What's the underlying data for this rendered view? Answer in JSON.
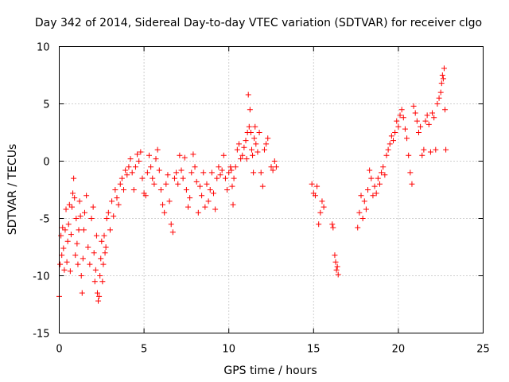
{
  "chart_data": {
    "type": "scatter",
    "title": "Day 342 of 2014, Sidereal Day-to-day VTEC variation (SDTVAR) for receiver clgo",
    "xlabel": "GPS time / hours",
    "ylabel": "SDTVAR / TECUs",
    "xlim": [
      0,
      25
    ],
    "ylim": [
      -15,
      10
    ],
    "xticks": [
      0,
      5,
      10,
      15,
      20,
      25
    ],
    "yticks": [
      -15,
      -10,
      -5,
      0,
      5,
      10
    ],
    "xtick_labels": [
      "0",
      "5",
      "10",
      "15",
      "20",
      "25"
    ],
    "ytick_labels": [
      "-15",
      "-10",
      "-5",
      "0",
      "5",
      "10"
    ],
    "grid": true,
    "marker": "+",
    "color": "#ff0000",
    "series": [
      {
        "name": "SDTVAR",
        "points": [
          [
            0.0,
            -11.8
          ],
          [
            0.05,
            -9.0
          ],
          [
            0.1,
            -6.5
          ],
          [
            0.15,
            -8.2
          ],
          [
            0.2,
            -5.8
          ],
          [
            0.25,
            -7.6
          ],
          [
            0.3,
            -9.5
          ],
          [
            0.35,
            -6.0
          ],
          [
            0.4,
            -4.2
          ],
          [
            0.45,
            -8.8
          ],
          [
            0.5,
            -7.0
          ],
          [
            0.55,
            -5.5
          ],
          [
            0.6,
            -3.8
          ],
          [
            0.65,
            -9.6
          ],
          [
            0.7,
            -6.4
          ],
          [
            0.75,
            -4.0
          ],
          [
            0.8,
            -2.8
          ],
          [
            0.85,
            -1.5
          ],
          [
            0.9,
            -3.2
          ],
          [
            0.95,
            -8.2
          ],
          [
            1.0,
            -5.0
          ],
          [
            1.05,
            -7.2
          ],
          [
            1.1,
            -9.0
          ],
          [
            1.15,
            -6.0
          ],
          [
            1.2,
            -3.5
          ],
          [
            1.25,
            -4.8
          ],
          [
            1.3,
            -10.0
          ],
          [
            1.35,
            -11.5
          ],
          [
            1.4,
            -8.5
          ],
          [
            1.45,
            -6.0
          ],
          [
            1.5,
            -4.5
          ],
          [
            1.6,
            -3.0
          ],
          [
            1.7,
            -7.5
          ],
          [
            1.8,
            -9.0
          ],
          [
            1.9,
            -5.0
          ],
          [
            2.0,
            -4.0
          ],
          [
            2.05,
            -8.0
          ],
          [
            2.1,
            -10.5
          ],
          [
            2.15,
            -9.5
          ],
          [
            2.2,
            -6.5
          ],
          [
            2.25,
            -11.5
          ],
          [
            2.3,
            -12.2
          ],
          [
            2.35,
            -11.8
          ],
          [
            2.4,
            -10.0
          ],
          [
            2.45,
            -8.5
          ],
          [
            2.5,
            -7.0
          ],
          [
            2.55,
            -10.5
          ],
          [
            2.6,
            -9.0
          ],
          [
            2.65,
            -6.5
          ],
          [
            2.7,
            -8.0
          ],
          [
            2.75,
            -7.5
          ],
          [
            2.8,
            -5.0
          ],
          [
            2.9,
            -4.5
          ],
          [
            3.0,
            -6.0
          ],
          [
            3.1,
            -3.5
          ],
          [
            3.2,
            -4.8
          ],
          [
            3.3,
            -2.5
          ],
          [
            3.4,
            -3.2
          ],
          [
            3.5,
            -3.8
          ],
          [
            3.6,
            -2.0
          ],
          [
            3.7,
            -1.5
          ],
          [
            3.8,
            -2.5
          ],
          [
            3.9,
            -0.8
          ],
          [
            4.0,
            -1.2
          ],
          [
            4.1,
            -0.5
          ],
          [
            4.2,
            0.2
          ],
          [
            4.3,
            -1.0
          ],
          [
            4.4,
            -2.5
          ],
          [
            4.5,
            -0.5
          ],
          [
            4.6,
            0.6
          ],
          [
            4.7,
            0.0
          ],
          [
            4.8,
            0.8
          ],
          [
            4.9,
            -1.5
          ],
          [
            5.0,
            -2.8
          ],
          [
            5.1,
            -3.0
          ],
          [
            5.2,
            -1.0
          ],
          [
            5.3,
            0.5
          ],
          [
            5.4,
            -0.5
          ],
          [
            5.5,
            -1.5
          ],
          [
            5.6,
            -2.0
          ],
          [
            5.7,
            0.2
          ],
          [
            5.8,
            1.0
          ],
          [
            5.9,
            -0.8
          ],
          [
            6.0,
            -2.5
          ],
          [
            6.1,
            -3.8
          ],
          [
            6.2,
            -4.5
          ],
          [
            6.3,
            -2.0
          ],
          [
            6.4,
            -1.2
          ],
          [
            6.5,
            -3.5
          ],
          [
            6.6,
            -5.5
          ],
          [
            6.7,
            -6.2
          ],
          [
            6.8,
            -1.5
          ],
          [
            6.9,
            -1.0
          ],
          [
            7.0,
            -2.0
          ],
          [
            7.1,
            0.5
          ],
          [
            7.2,
            -0.8
          ],
          [
            7.3,
            -1.5
          ],
          [
            7.4,
            0.3
          ],
          [
            7.5,
            -2.5
          ],
          [
            7.6,
            -4.0
          ],
          [
            7.7,
            -3.2
          ],
          [
            7.8,
            -1.0
          ],
          [
            7.9,
            0.6
          ],
          [
            8.0,
            -0.5
          ],
          [
            8.1,
            -1.8
          ],
          [
            8.2,
            -4.5
          ],
          [
            8.3,
            -2.2
          ],
          [
            8.4,
            -3.0
          ],
          [
            8.5,
            -1.0
          ],
          [
            8.6,
            -4.0
          ],
          [
            8.7,
            -2.0
          ],
          [
            8.8,
            -3.5
          ],
          [
            8.9,
            -2.5
          ],
          [
            9.0,
            -1.0
          ],
          [
            9.1,
            -2.8
          ],
          [
            9.2,
            -4.2
          ],
          [
            9.3,
            -1.5
          ],
          [
            9.4,
            -0.5
          ],
          [
            9.5,
            -1.2
          ],
          [
            9.6,
            -0.8
          ],
          [
            9.7,
            0.5
          ],
          [
            9.8,
            -1.5
          ],
          [
            9.9,
            -2.5
          ],
          [
            10.0,
            -1.0
          ],
          [
            10.1,
            -0.5
          ],
          [
            10.15,
            -0.8
          ],
          [
            10.2,
            -2.2
          ],
          [
            10.25,
            -3.8
          ],
          [
            10.3,
            -1.5
          ],
          [
            10.4,
            -0.5
          ],
          [
            10.5,
            1.0
          ],
          [
            10.6,
            1.5
          ],
          [
            10.7,
            0.2
          ],
          [
            10.8,
            0.5
          ],
          [
            10.9,
            1.2
          ],
          [
            11.0,
            1.8
          ],
          [
            11.05,
            0.2
          ],
          [
            11.1,
            2.5
          ],
          [
            11.15,
            5.8
          ],
          [
            11.2,
            3.0
          ],
          [
            11.25,
            4.5
          ],
          [
            11.3,
            2.5
          ],
          [
            11.35,
            1.0
          ],
          [
            11.4,
            0.5
          ],
          [
            11.45,
            -1.0
          ],
          [
            11.5,
            2.0
          ],
          [
            11.55,
            3.0
          ],
          [
            11.6,
            1.5
          ],
          [
            11.7,
            0.8
          ],
          [
            11.8,
            2.5
          ],
          [
            11.9,
            -1.0
          ],
          [
            12.0,
            -2.2
          ],
          [
            12.1,
            1.0
          ],
          [
            12.2,
            1.5
          ],
          [
            12.3,
            2.0
          ],
          [
            12.5,
            -0.5
          ],
          [
            12.6,
            -0.8
          ],
          [
            12.7,
            0.0
          ],
          [
            12.8,
            -0.5
          ],
          [
            14.9,
            -2.0
          ],
          [
            15.0,
            -2.8
          ],
          [
            15.1,
            -3.0
          ],
          [
            15.2,
            -2.2
          ],
          [
            15.3,
            -5.5
          ],
          [
            15.4,
            -4.5
          ],
          [
            15.5,
            -3.5
          ],
          [
            15.6,
            -4.0
          ],
          [
            16.1,
            -5.5
          ],
          [
            16.15,
            -5.8
          ],
          [
            16.25,
            -8.2
          ],
          [
            16.3,
            -8.8
          ],
          [
            16.35,
            -9.5
          ],
          [
            16.4,
            -9.2
          ],
          [
            16.45,
            -9.9
          ],
          [
            17.6,
            -5.8
          ],
          [
            17.7,
            -4.5
          ],
          [
            17.8,
            -3.0
          ],
          [
            17.9,
            -5.0
          ],
          [
            18.0,
            -3.5
          ],
          [
            18.1,
            -4.2
          ],
          [
            18.2,
            -2.5
          ],
          [
            18.3,
            -0.8
          ],
          [
            18.4,
            -1.5
          ],
          [
            18.5,
            -3.0
          ],
          [
            18.6,
            -2.2
          ],
          [
            18.7,
            -2.8
          ],
          [
            18.8,
            -1.5
          ],
          [
            18.9,
            -2.0
          ],
          [
            19.0,
            -1.0
          ],
          [
            19.1,
            -0.5
          ],
          [
            19.2,
            -1.2
          ],
          [
            19.3,
            0.5
          ],
          [
            19.4,
            1.0
          ],
          [
            19.5,
            1.5
          ],
          [
            19.6,
            2.2
          ],
          [
            19.7,
            1.8
          ],
          [
            19.8,
            2.5
          ],
          [
            19.9,
            3.5
          ],
          [
            20.0,
            3.0
          ],
          [
            20.1,
            4.0
          ],
          [
            20.2,
            4.5
          ],
          [
            20.3,
            3.8
          ],
          [
            20.4,
            2.8
          ],
          [
            20.5,
            2.0
          ],
          [
            20.6,
            0.5
          ],
          [
            20.7,
            -1.0
          ],
          [
            20.8,
            -2.0
          ],
          [
            20.9,
            4.8
          ],
          [
            21.0,
            4.2
          ],
          [
            21.1,
            3.5
          ],
          [
            21.2,
            2.5
          ],
          [
            21.3,
            3.0
          ],
          [
            21.4,
            0.5
          ],
          [
            21.5,
            1.0
          ],
          [
            21.6,
            3.5
          ],
          [
            21.7,
            4.0
          ],
          [
            21.8,
            3.2
          ],
          [
            21.9,
            0.8
          ],
          [
            22.0,
            4.2
          ],
          [
            22.1,
            3.8
          ],
          [
            22.2,
            1.0
          ],
          [
            22.3,
            5.0
          ],
          [
            22.4,
            5.5
          ],
          [
            22.5,
            6.0
          ],
          [
            22.55,
            6.8
          ],
          [
            22.6,
            7.5
          ],
          [
            22.65,
            7.2
          ],
          [
            22.7,
            8.1
          ],
          [
            22.75,
            4.5
          ],
          [
            22.8,
            1.0
          ]
        ]
      }
    ]
  }
}
